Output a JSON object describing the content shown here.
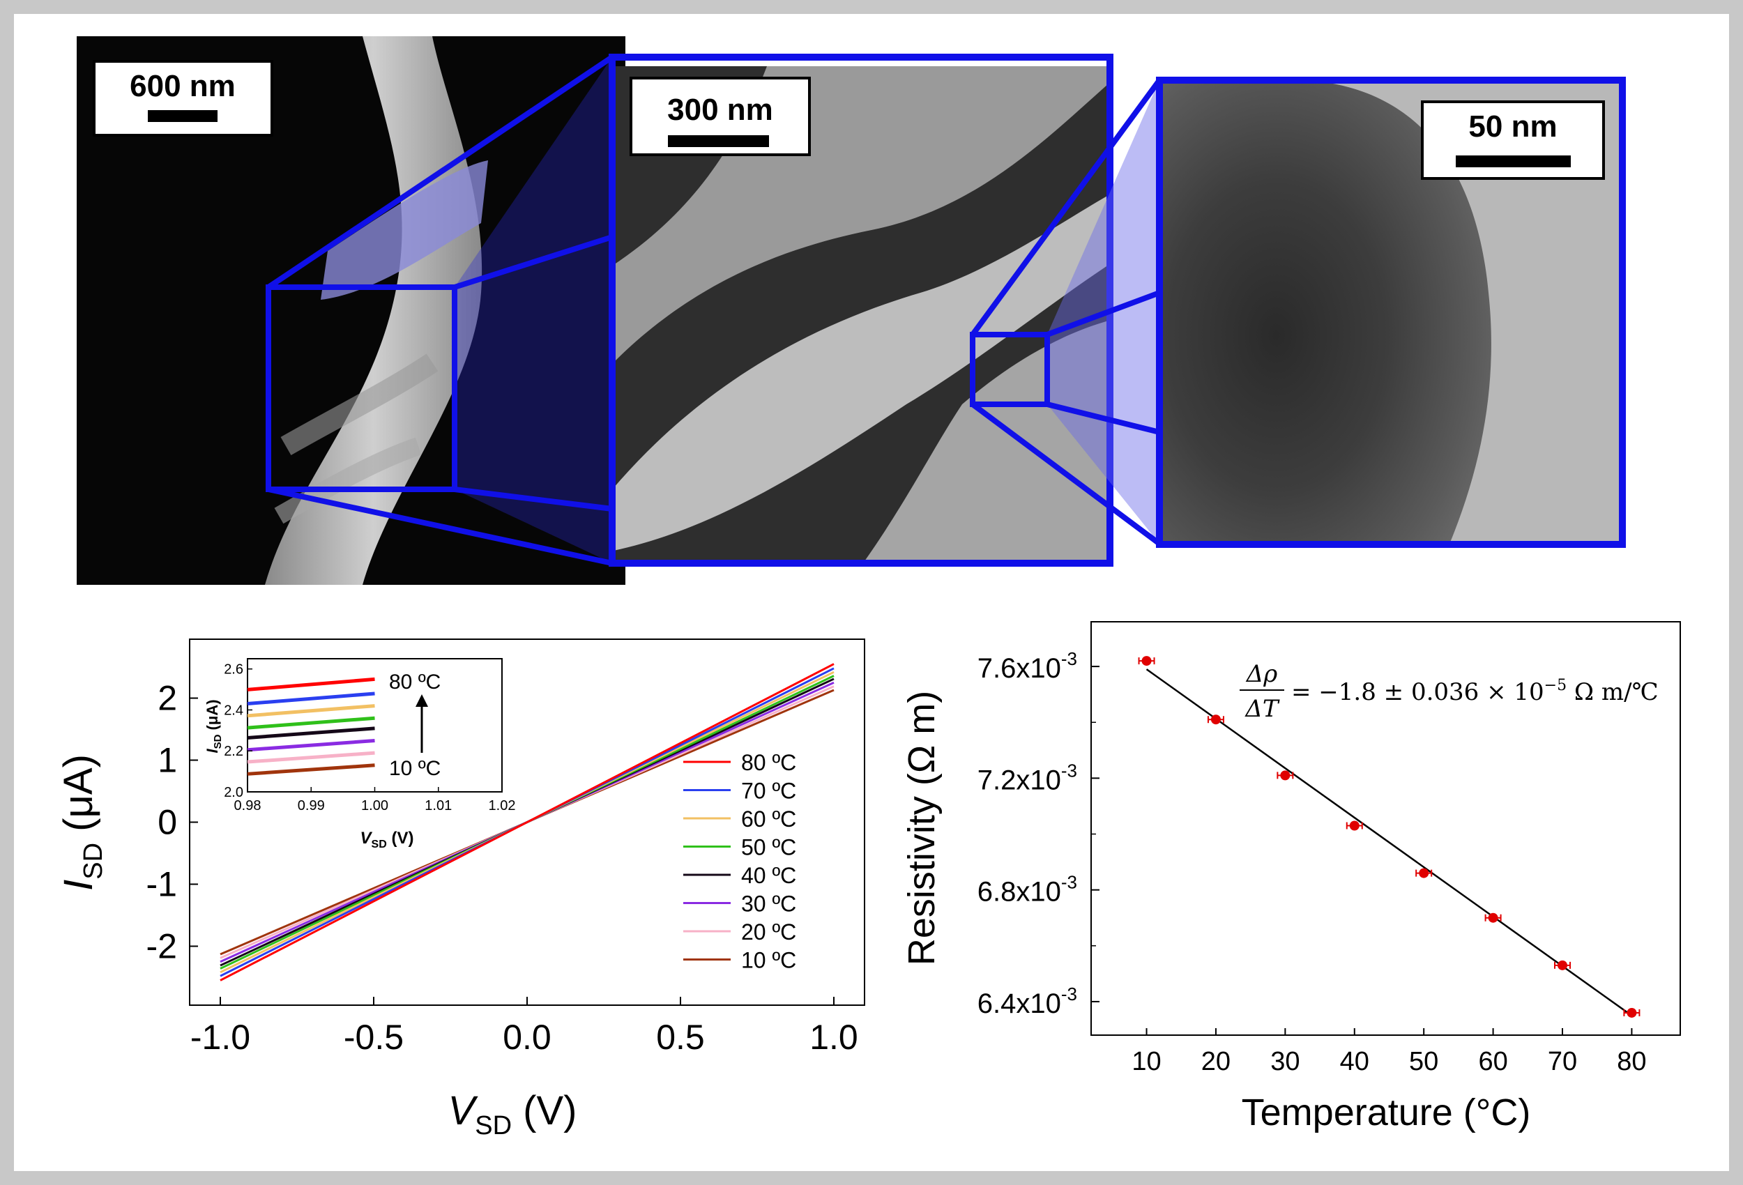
{
  "panels": {
    "sem_low": {
      "scale_bar": "600 nm"
    },
    "sem_high": {
      "scale_bar": "300 nm"
    },
    "tem": {
      "scale_bar": "50 nm"
    }
  },
  "colors": {
    "frame": "#c8c8c8",
    "zoom_box": "#1010e8",
    "points": "#e00000"
  },
  "chart_data": [
    {
      "type": "line",
      "xlabel": {
        "main": "V",
        "sub": "SD",
        "unit": " (V)"
      },
      "ylabel": {
        "main": "I",
        "sub": "SD",
        "unit": " (μA)"
      },
      "xlim": [
        -1.1,
        1.1
      ],
      "ylim": [
        -2.95,
        2.95
      ],
      "xticks": [
        "-1.0",
        "-0.5",
        "0.0",
        "0.5",
        "1.0"
      ],
      "yticks": [
        "-2",
        "-1",
        "0",
        "1",
        "2"
      ],
      "legend_placement": "right",
      "series": [
        {
          "name": "80 ºC",
          "color": "#ff0000",
          "slope": 2.55
        },
        {
          "name": "70 ºC",
          "color": "#2a3ff0",
          "slope": 2.48
        },
        {
          "name": "60 ºC",
          "color": "#f2c063",
          "slope": 2.42
        },
        {
          "name": "50 ºC",
          "color": "#2fc01a",
          "slope": 2.36
        },
        {
          "name": "40 ºC",
          "color": "#150818",
          "slope": 2.31
        },
        {
          "name": "30 ºC",
          "color": "#8a2be2",
          "slope": 2.25
        },
        {
          "name": "20 ºC",
          "color": "#f7b1c7",
          "slope": 2.19
        },
        {
          "name": "10 ºC",
          "color": "#a0340c",
          "slope": 2.13
        }
      ],
      "inset": {
        "xlabel": {
          "main": "V",
          "sub": "SD",
          "unit": " (V)"
        },
        "ylabel": {
          "main": "I",
          "sub": "SD",
          "unit": " (μA)"
        },
        "xlim": [
          0.98,
          1.02
        ],
        "ylim": [
          2.0,
          2.65
        ],
        "xticks": [
          "0.98",
          "0.99",
          "1.00",
          "1.01",
          "1.02"
        ],
        "yticks": [
          "2.0",
          "2.2",
          "2.4",
          "2.6"
        ],
        "top_label": "80 ºC",
        "bottom_label": "10 ºC"
      }
    },
    {
      "type": "scatter",
      "xlabel": "Temperature (°C)",
      "ylabel": "Resistivity (Ω m)",
      "xlim": [
        2,
        87
      ],
      "ylim": [
        6.28,
        7.76
      ],
      "xticks": [
        "10",
        "20",
        "30",
        "40",
        "50",
        "60",
        "70",
        "80"
      ],
      "yticks": [
        {
          "base": "6.4x10",
          "exp": "-3",
          "value": 6.4
        },
        {
          "base": "6.8x10",
          "exp": "-3",
          "value": 6.8
        },
        {
          "base": "7.2x10",
          "exp": "-3",
          "value": 7.2
        },
        {
          "base": "7.6x10",
          "exp": "-3",
          "value": 7.6
        }
      ],
      "points": [
        {
          "x": 10,
          "y": 7.62
        },
        {
          "x": 20,
          "y": 7.41
        },
        {
          "x": 30,
          "y": 7.21
        },
        {
          "x": 40,
          "y": 7.03
        },
        {
          "x": 50,
          "y": 6.86
        },
        {
          "x": 60,
          "y": 6.7
        },
        {
          "x": 70,
          "y": 6.53
        },
        {
          "x": 80,
          "y": 6.36
        }
      ],
      "fit": {
        "x": [
          10,
          80
        ],
        "y": [
          7.59,
          6.35
        ]
      },
      "annotation": {
        "num": "Δρ",
        "den": "ΔT",
        "rhs": "= −1.8 ± 0.036 × 10",
        "exp": "−5",
        "unit": " Ω m/℃"
      }
    }
  ]
}
